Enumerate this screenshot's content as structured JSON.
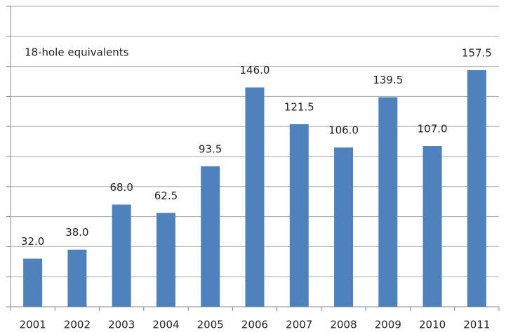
{
  "chart_data": {
    "type": "bar",
    "annotation": "18-hole equivalents",
    "categories": [
      "2001",
      "2002",
      "2003",
      "2004",
      "2005",
      "2006",
      "2007",
      "2008",
      "2009",
      "2010",
      "2011"
    ],
    "values": [
      32.0,
      38.0,
      68.0,
      62.5,
      93.5,
      146.0,
      121.5,
      106.0,
      139.5,
      107.0,
      157.5
    ],
    "value_labels": [
      "32.0",
      "38.0",
      "68.0",
      "62.5",
      "93.5",
      "146.0",
      "121.5",
      "106.0",
      "139.5",
      "107.0",
      "157.5"
    ],
    "color": "#4f81bd",
    "ylim": [
      0,
      200
    ],
    "yticks": [
      0,
      20,
      40,
      60,
      80,
      100,
      120,
      140,
      160,
      180,
      200
    ],
    "grid": true
  }
}
